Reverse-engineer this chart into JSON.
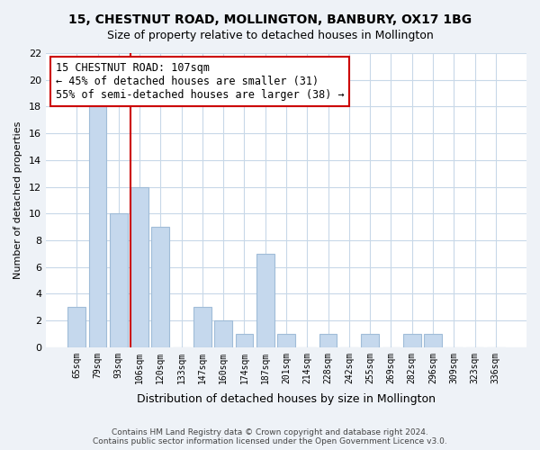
{
  "title": "15, CHESTNUT ROAD, MOLLINGTON, BANBURY, OX17 1BG",
  "subtitle": "Size of property relative to detached houses in Mollington",
  "xlabel": "Distribution of detached houses by size in Mollington",
  "ylabel": "Number of detached properties",
  "bar_labels": [
    "65sqm",
    "79sqm",
    "93sqm",
    "106sqm",
    "120sqm",
    "133sqm",
    "147sqm",
    "160sqm",
    "174sqm",
    "187sqm",
    "201sqm",
    "214sqm",
    "228sqm",
    "242sqm",
    "255sqm",
    "269sqm",
    "282sqm",
    "296sqm",
    "309sqm",
    "323sqm",
    "336sqm"
  ],
  "bar_values": [
    3,
    18,
    10,
    12,
    9,
    0,
    3,
    2,
    1,
    7,
    1,
    0,
    1,
    0,
    1,
    0,
    1,
    1,
    0,
    0,
    0
  ],
  "bar_color": "#c5d8ed",
  "bar_edge_color": "#a0bcd8",
  "marker_index": 3,
  "marker_line_color": "#cc0000",
  "annotation_line1": "15 CHESTNUT ROAD: 107sqm",
  "annotation_line2": "← 45% of detached houses are smaller (31)",
  "annotation_line3": "55% of semi-detached houses are larger (38) →",
  "ylim": [
    0,
    22
  ],
  "yticks": [
    0,
    2,
    4,
    6,
    8,
    10,
    12,
    14,
    16,
    18,
    20,
    22
  ],
  "footer_line1": "Contains HM Land Registry data © Crown copyright and database right 2024.",
  "footer_line2": "Contains public sector information licensed under the Open Government Licence v3.0.",
  "bg_color": "#eef2f7",
  "plot_bg_color": "#ffffff"
}
